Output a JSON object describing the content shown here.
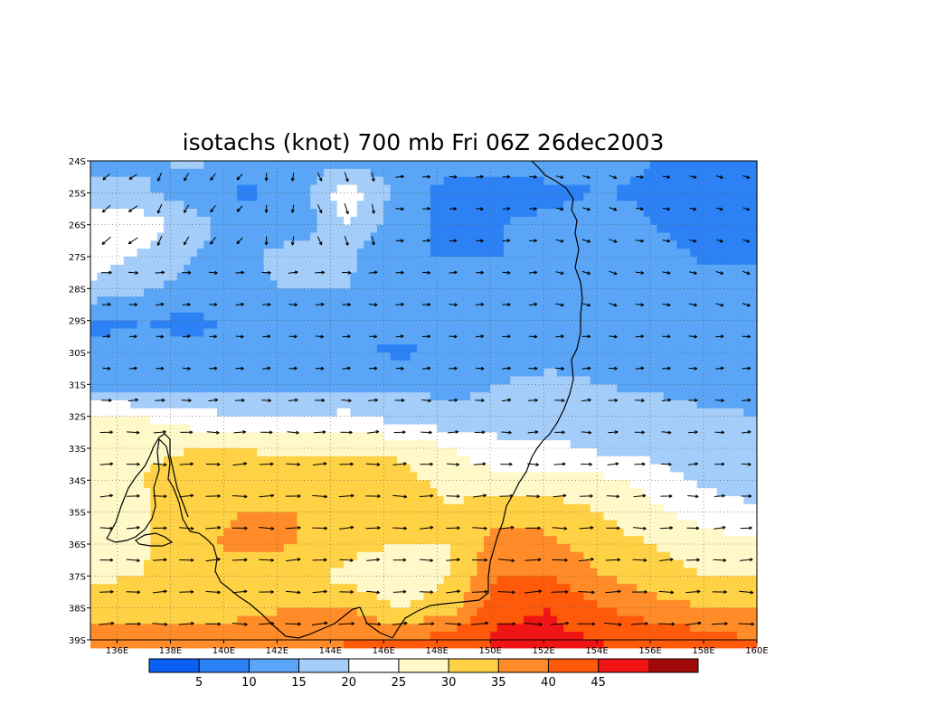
{
  "chart_data": {
    "type": "heatmap",
    "title": "isotachs (knot) 700 mb Fri 06Z 26dec2003",
    "xlim": [
      135,
      160
    ],
    "ylim": [
      -39,
      -24
    ],
    "x_ticks": [
      "136E",
      "138E",
      "140E",
      "142E",
      "144E",
      "146E",
      "148E",
      "150E",
      "152E",
      "154E",
      "156E",
      "158E",
      "160E"
    ],
    "x_tick_values": [
      136,
      138,
      140,
      142,
      144,
      146,
      148,
      150,
      152,
      154,
      156,
      158,
      160
    ],
    "y_ticks": [
      "24S",
      "25S",
      "26S",
      "27S",
      "28S",
      "29S",
      "30S",
      "31S",
      "32S",
      "33S",
      "34S",
      "35S",
      "36S",
      "37S",
      "38S",
      "39S"
    ],
    "y_tick_values": [
      -24,
      -25,
      -26,
      -27,
      -28,
      -29,
      -30,
      -31,
      -32,
      -33,
      -34,
      -35,
      -36,
      -37,
      -38,
      -39
    ],
    "grid": true,
    "colorbar": {
      "levels": [
        5,
        10,
        15,
        20,
        25,
        30,
        35,
        40,
        45
      ],
      "labels": [
        "5",
        "10",
        "15",
        "20",
        "25",
        "30",
        "35",
        "40",
        "45"
      ],
      "colors": [
        "#0a5ff5",
        "#2c82f5",
        "#5aa5f5",
        "#a5cdfa",
        "#ffffff",
        "#fff8c8",
        "#ffd246",
        "#ff8c28",
        "#ff5a0a",
        "#f01414",
        "#a00a0a"
      ]
    },
    "series": [
      {
        "values": [
          [
            13,
            14,
            16,
            13,
            13,
            12,
            13,
            12,
            12,
            12,
            12,
            10,
            10,
            10
          ],
          [
            17,
            16,
            12,
            9,
            12,
            24,
            13,
            8,
            8,
            9,
            10,
            9,
            7,
            9
          ],
          [
            24,
            23,
            17,
            12,
            10,
            20,
            12,
            9,
            10,
            11,
            13,
            10,
            6,
            8
          ],
          [
            23,
            19,
            15,
            13,
            19,
            16,
            10,
            10,
            10,
            12,
            14,
            13,
            9,
            9
          ],
          [
            19,
            16,
            13,
            14,
            15,
            15,
            13,
            13,
            12,
            12,
            12,
            12,
            12,
            12
          ],
          [
            9,
            10,
            9,
            11,
            11,
            11,
            12,
            12,
            12,
            13,
            13,
            12,
            12,
            12
          ],
          [
            11,
            11,
            11,
            11,
            11,
            11,
            9,
            11,
            12,
            12,
            12,
            12,
            12,
            12
          ],
          [
            12,
            11,
            12,
            13,
            13,
            14,
            14,
            14,
            15,
            17,
            15,
            14,
            13,
            13
          ],
          [
            26,
            25,
            22,
            20,
            20,
            21,
            18,
            16,
            16,
            18,
            17,
            17,
            16,
            15
          ],
          [
            28,
            29,
            30,
            30,
            28,
            28,
            29,
            25,
            22,
            21,
            19,
            18,
            16,
            15
          ],
          [
            27,
            30,
            32,
            34,
            35,
            34,
            32,
            28,
            26,
            26,
            26,
            23,
            19,
            17
          ],
          [
            27,
            29,
            34,
            35,
            35,
            35,
            33,
            31,
            33,
            33,
            30,
            26,
            23,
            21
          ],
          [
            28,
            29,
            34,
            36,
            35,
            32,
            30,
            30,
            38,
            36,
            32,
            30,
            27,
            26
          ],
          [
            29,
            30,
            33,
            33,
            33,
            28,
            25,
            30,
            40,
            40,
            35,
            32,
            30,
            30
          ],
          [
            33,
            33,
            33,
            34,
            35,
            35,
            30,
            33,
            44,
            45,
            40,
            37,
            35,
            35
          ],
          [
            38,
            38,
            37,
            37,
            38,
            40,
            40,
            42,
            46,
            46,
            45,
            44,
            42,
            40
          ]
        ]
      }
    ],
    "legend": [
      "5",
      "10",
      "15",
      "20",
      "25",
      "30",
      "35",
      "40",
      "45"
    ]
  }
}
